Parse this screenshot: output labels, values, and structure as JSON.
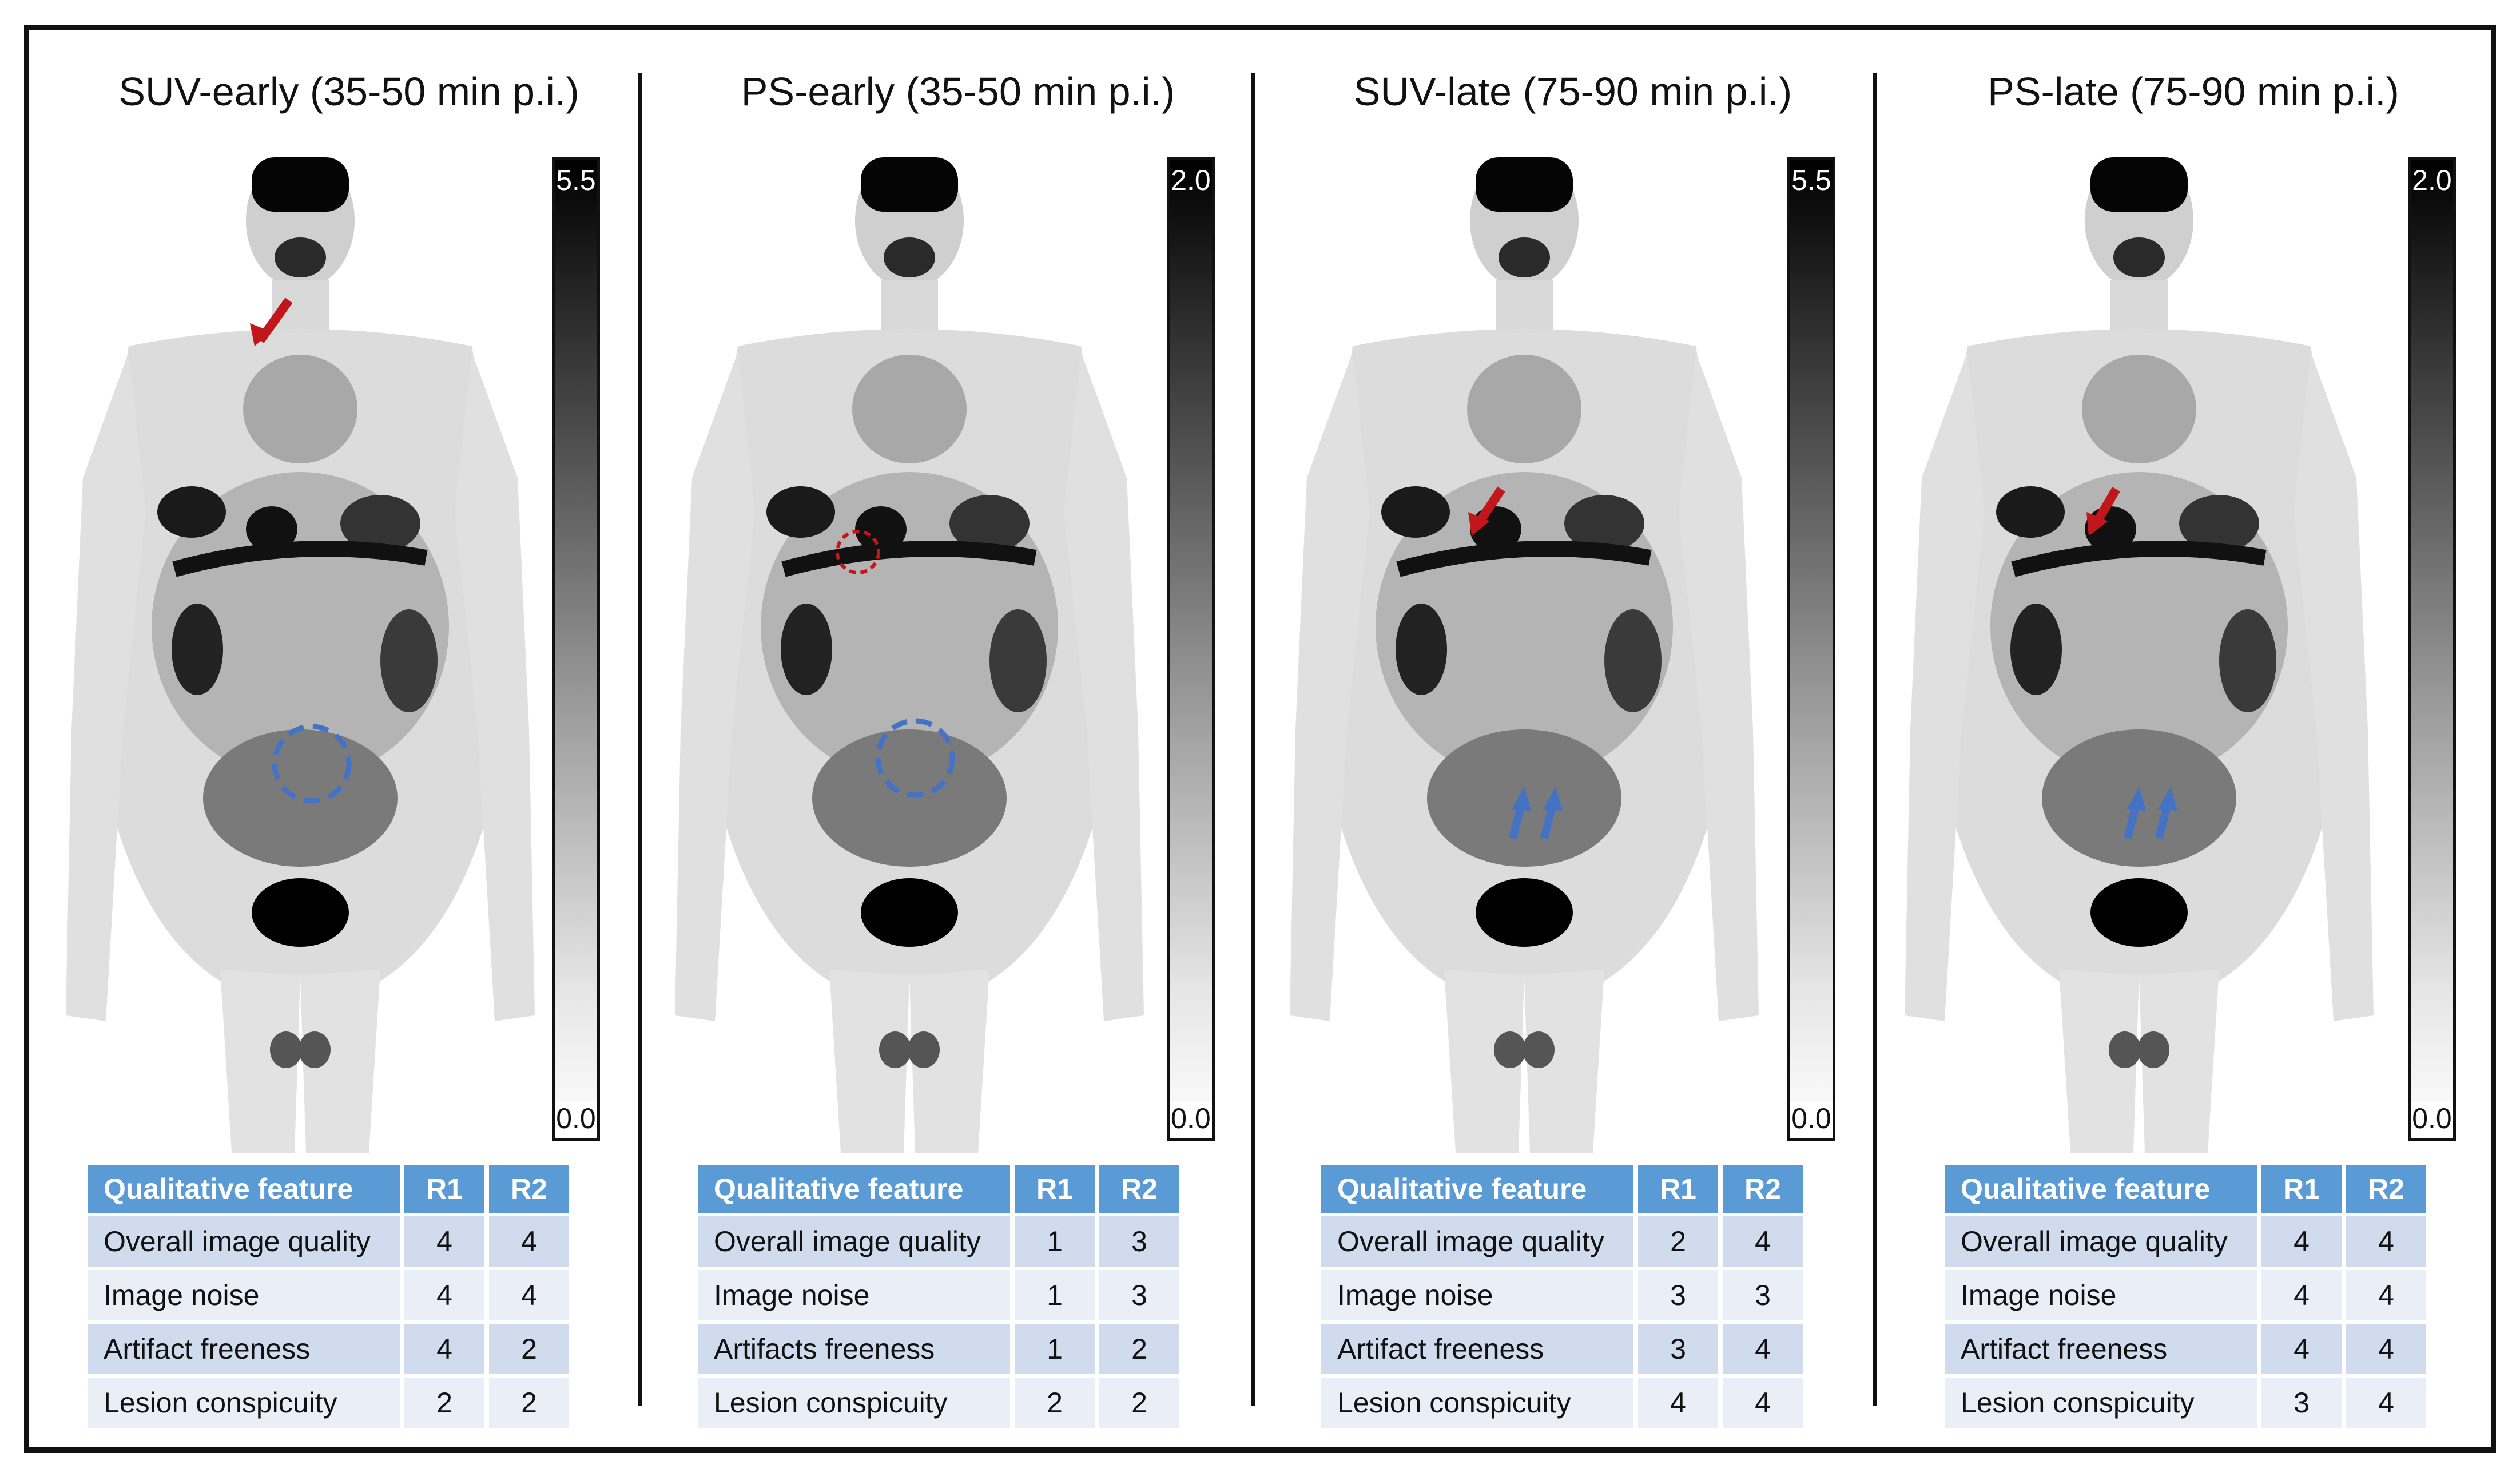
{
  "colors": {
    "header_bg": "#5b9bd5",
    "row_dark": "#d0dcee",
    "row_light": "#e9eef7",
    "arrow_red": "#c0161c",
    "arrow_blue": "#4472c4",
    "circle_blue": "#4472c4",
    "circle_red": "#c0161c"
  },
  "panels": [
    {
      "title": "SUV-early (35-50 min p.i.)",
      "scale_max": "5.5",
      "scale_min": "0.0",
      "header": [
        "Qualitative feature",
        "R1",
        "R2"
      ],
      "rows": [
        [
          "Overall image quality",
          "4",
          "4"
        ],
        [
          "Image noise",
          "4",
          "4"
        ],
        [
          "Artifact freeness",
          "4",
          "2"
        ],
        [
          "Lesion conspicuity",
          "2",
          "2"
        ]
      ]
    },
    {
      "title": "PS-early (35-50 min p.i.)",
      "scale_max": "2.0",
      "scale_min": "0.0",
      "header": [
        "Qualitative feature",
        "R1",
        "R2"
      ],
      "rows": [
        [
          "Overall image quality",
          "1",
          "3"
        ],
        [
          "Image noise",
          "1",
          "3"
        ],
        [
          "Artifacts freeness",
          "1",
          "2"
        ],
        [
          "Lesion conspicuity",
          "2",
          "2"
        ]
      ]
    },
    {
      "title": "SUV-late (75-90 min p.i.)",
      "scale_max": "5.5",
      "scale_min": "0.0",
      "header": [
        "Qualitative feature",
        "R1",
        "R2"
      ],
      "rows": [
        [
          "Overall image quality",
          "2",
          "4"
        ],
        [
          "Image noise",
          "3",
          "3"
        ],
        [
          "Artifact freeness",
          "3",
          "4"
        ],
        [
          "Lesion conspicuity",
          "4",
          "4"
        ]
      ]
    },
    {
      "title": "PS-late (75-90 min p.i.)",
      "scale_max": "2.0",
      "scale_min": "0.0",
      "header": [
        "Qualitative feature",
        "R1",
        "R2"
      ],
      "rows": [
        [
          "Overall image quality",
          "4",
          "4"
        ],
        [
          "Image noise",
          "4",
          "4"
        ],
        [
          "Artifact freeness",
          "4",
          "4"
        ],
        [
          "Lesion conspicuity",
          "3",
          "4"
        ]
      ]
    }
  ]
}
